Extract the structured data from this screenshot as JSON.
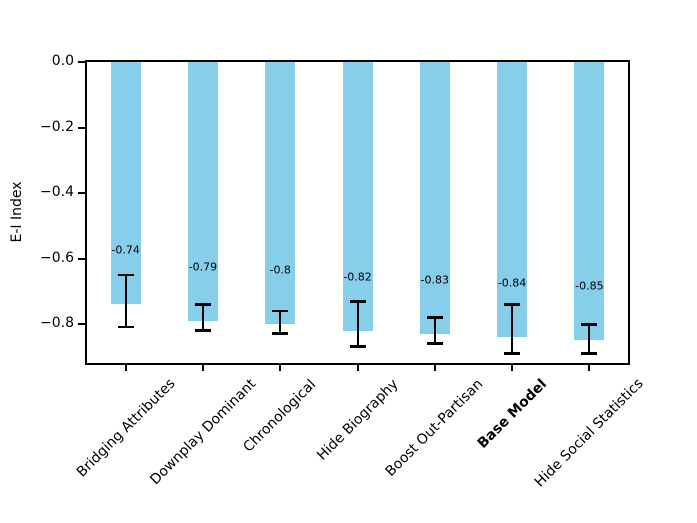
{
  "chart_data": {
    "type": "bar",
    "title": "",
    "xlabel": "",
    "ylabel": "E-I Index",
    "categories": [
      "Bridging Attributes",
      "Downplay Dominant",
      "Chronological",
      "Hide Biography",
      "Boost Out-Partisan",
      "Base Model",
      "Hide Social Statistics"
    ],
    "values": [
      -0.74,
      -0.79,
      -0.8,
      -0.82,
      -0.83,
      -0.84,
      -0.85
    ],
    "value_labels": [
      "-0.74",
      "-0.79",
      "-0.8",
      "-0.82",
      "-0.83",
      "-0.84",
      "-0.85"
    ],
    "error_low": [
      -0.81,
      -0.82,
      -0.83,
      -0.87,
      -0.86,
      -0.89,
      -0.89
    ],
    "error_high": [
      -0.65,
      -0.74,
      -0.76,
      -0.73,
      -0.78,
      -0.74,
      -0.8
    ],
    "emphasized_category": "Base Model",
    "bar_color": "#87CEEB",
    "error_color": "#000000",
    "axis_color": "#000000",
    "text_color": "#000000",
    "ylim": [
      -0.919,
      0
    ],
    "yticks": [
      0,
      -0.2,
      -0.4,
      -0.6,
      -0.8
    ],
    "ytick_labels": [
      "0.0",
      "−0.2",
      "−0.4",
      "−0.6",
      "−0.8"
    ],
    "grid": false,
    "legend": "none"
  }
}
